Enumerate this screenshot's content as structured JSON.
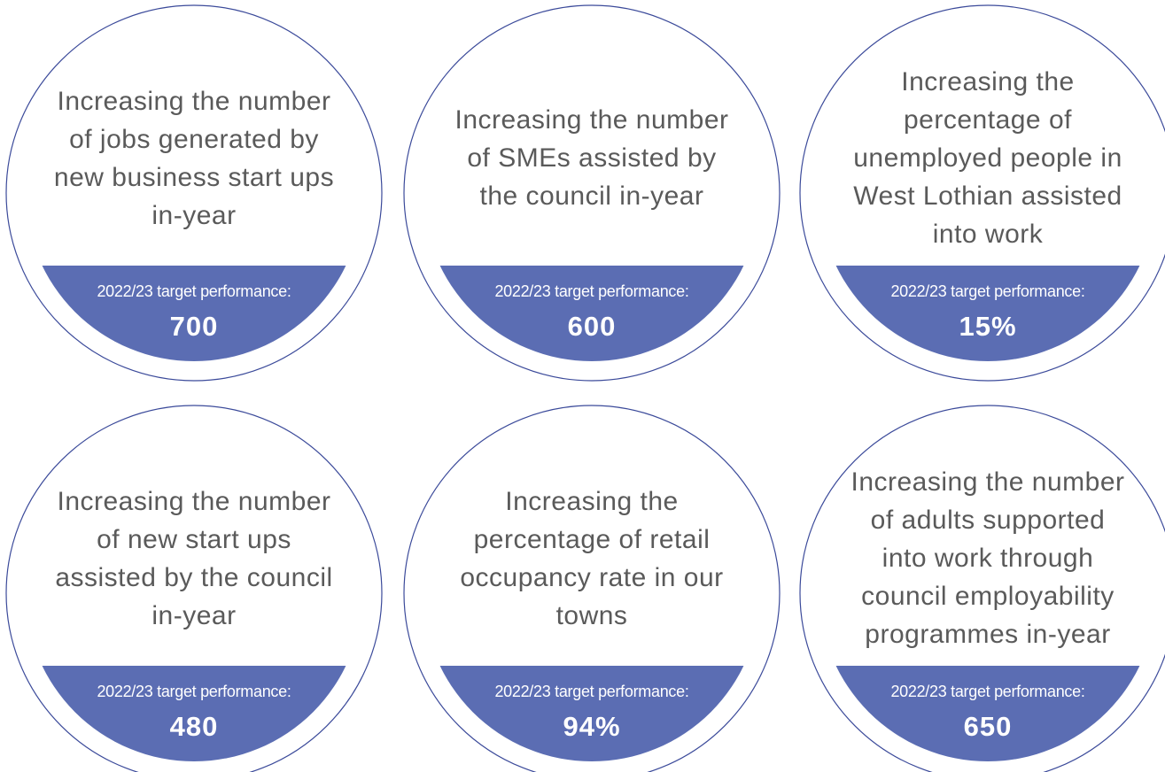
{
  "cards": [
    {
      "description": "Increasing the number of jobs generated by new business start ups in-year",
      "target_label": "2022/23 target performance:",
      "target": "700"
    },
    {
      "description": "Increasing the number of SMEs assisted by the council in-year",
      "target_label": "2022/23 target performance:",
      "target": "600"
    },
    {
      "description": "Increasing the percentage of unemployed people in West Lothian assisted into work",
      "target_label": "2022/23 target performance:",
      "target": "15%"
    },
    {
      "description": "Increasing the number of new start ups assisted by the council in-year",
      "target_label": "2022/23 target performance:",
      "target": "480"
    },
    {
      "description": "Increasing the percentage of retail occupancy rate in our towns",
      "target_label": "2022/23 target performance:",
      "target": "94%"
    },
    {
      "description": "Increasing the number of adults supported into work through council employability programmes in-year",
      "target_label": "2022/23 target performance:",
      "target": "650"
    }
  ]
}
